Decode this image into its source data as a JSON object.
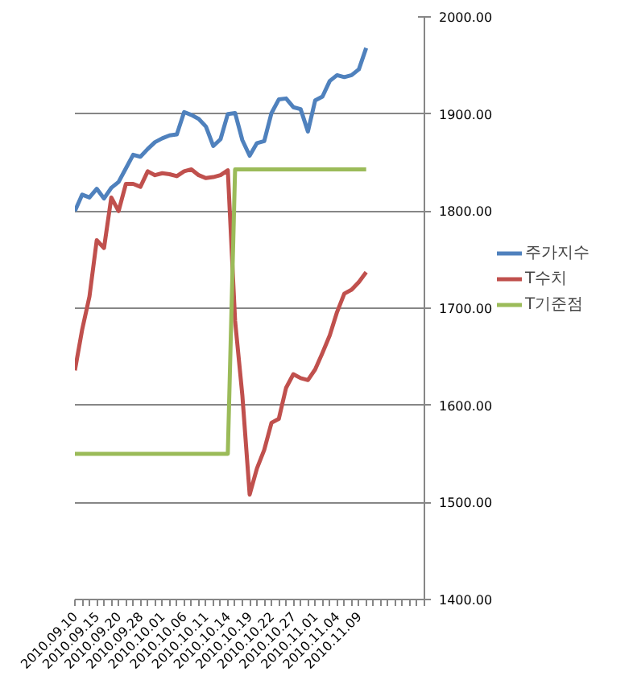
{
  "chart_data": {
    "type": "line",
    "categories": [
      "2010.09.10",
      null,
      null,
      "2010.09.15",
      null,
      null,
      "2010.09.20",
      null,
      null,
      "2010.09.28",
      null,
      null,
      "2010.10.01",
      null,
      null,
      "2010.10.06",
      null,
      null,
      "2010.10.11",
      null,
      null,
      "2010.10.14",
      null,
      null,
      "2010.10.19",
      null,
      null,
      "2010.10.22",
      null,
      null,
      "2010.10.27",
      null,
      null,
      "2010.11.01",
      null,
      null,
      "2010.11.04",
      null,
      null,
      "2010.11.09",
      null,
      null,
      null,
      null,
      null,
      null,
      null,
      null,
      null
    ],
    "series": [
      {
        "name": "주가지수",
        "color": "#4f81bd",
        "values": [
          1800,
          1817,
          1814,
          1823,
          1813,
          1824,
          1830,
          1844,
          1858,
          1856,
          1864,
          1871,
          1875,
          1878,
          1879,
          1902,
          1899,
          1895,
          1887,
          1867,
          1874,
          1900,
          1901,
          1873,
          1857,
          1870,
          1872,
          1901,
          1915,
          1916,
          1907,
          1905,
          1882,
          1914,
          1918,
          1934,
          1940,
          1938,
          1940,
          1946,
          1968,
          null,
          null,
          null,
          null,
          null,
          null,
          null,
          null
        ]
      },
      {
        "name": "T수치",
        "color": "#c0504d",
        "values": [
          1636,
          1678,
          1712,
          1770,
          1762,
          1814,
          1800,
          1828,
          1828,
          1825,
          1841,
          1837,
          1839,
          1838,
          1836,
          1841,
          1843,
          1837,
          1834,
          1835,
          1837,
          1842,
          1687,
          1610,
          1508,
          1535,
          1554,
          1582,
          1586,
          1618,
          1632,
          1628,
          1626,
          1637,
          1654,
          1672,
          1696,
          1715,
          1719,
          1727,
          1737,
          null,
          null,
          null,
          null,
          null,
          null,
          null,
          null
        ]
      },
      {
        "name": "T기준점",
        "color": "#9bbb59",
        "values": [
          1550,
          1550,
          1550,
          1550,
          1550,
          1550,
          1550,
          1550,
          1550,
          1550,
          1550,
          1550,
          1550,
          1550,
          1550,
          1550,
          1550,
          1550,
          1550,
          1550,
          1550,
          1550,
          1843,
          1843,
          1843,
          1843,
          1843,
          1843,
          1843,
          1843,
          1843,
          1843,
          1843,
          1843,
          1843,
          1843,
          1843,
          1843,
          1843,
          1843,
          1843,
          null,
          null,
          null,
          null,
          null,
          null,
          null,
          null
        ]
      }
    ],
    "ylim": [
      1400,
      2000
    ],
    "yticks": [
      {
        "value": 1400,
        "label": "1400.00"
      },
      {
        "value": 1500,
        "label": "1500.00"
      },
      {
        "value": 1600,
        "label": "1600.00"
      },
      {
        "value": 1700,
        "label": "1700.00"
      },
      {
        "value": 1800,
        "label": "1800.00"
      },
      {
        "value": 1900,
        "label": "1900.00"
      },
      {
        "value": 2000,
        "label": "2000.00"
      }
    ],
    "grid": "y",
    "legend": "right",
    "marker": "none",
    "line_style": "solid"
  }
}
